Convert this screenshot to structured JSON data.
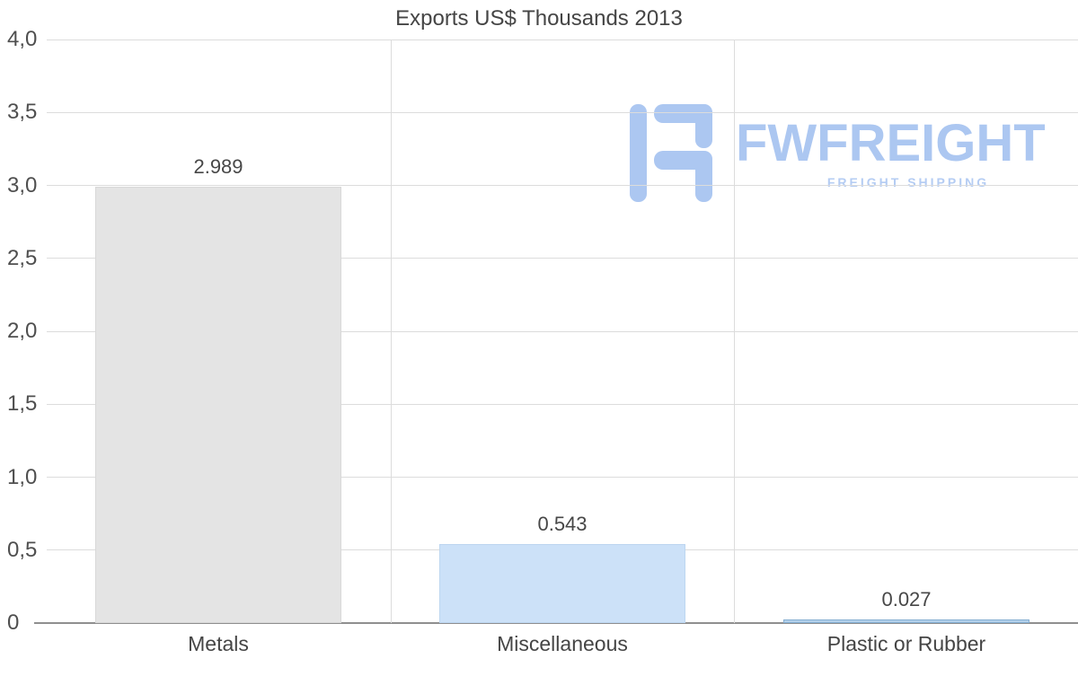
{
  "title": "Exports US$ Thousands 2013",
  "watermark": {
    "brand": "FWFREIGHT",
    "tagline": "FREIGHT SHIPPING",
    "color": "#a6c3f0"
  },
  "chart_data": {
    "type": "bar",
    "title": "Exports US$ Thousands 2013",
    "categories": [
      "Metals",
      "Miscellaneous",
      "Plastic or Rubber"
    ],
    "values": [
      2.989,
      0.543,
      0.027
    ],
    "value_labels": [
      "2.989",
      "0.543",
      "0.027"
    ],
    "bar_colors": [
      "#e4e4e4",
      "#cce1f8",
      "#b3d0ea"
    ],
    "bar_border_colors": [
      "#d8d8d8",
      "#bdd6f0",
      "#84add1"
    ],
    "xlabel": "",
    "ylabel": "",
    "ylim": [
      0,
      4
    ],
    "y_ticks": [
      0,
      0.5,
      1.0,
      1.5,
      2.0,
      2.5,
      3.0,
      3.5,
      4.0
    ],
    "y_tick_labels": [
      "0",
      "0,5",
      "1,0",
      "1,5",
      "2,0",
      "2,5",
      "3,0",
      "3,5",
      "4,0"
    ],
    "grid": true,
    "legend": false,
    "gridline_color": "#dcdcdc",
    "axis_color": "#8f8f8f",
    "text_color": "#474747"
  }
}
